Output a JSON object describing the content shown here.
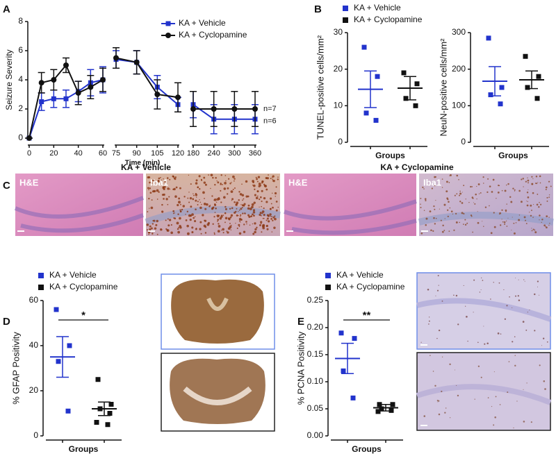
{
  "figure": {
    "panel_labels": [
      "A",
      "B",
      "C",
      "D",
      "E"
    ],
    "panel_c": {
      "headers": [
        "KA + Vehicle",
        "KA + Cyclopamine"
      ],
      "image_labels": [
        "H&E",
        "Iba1",
        "H&E",
        "Iba1"
      ]
    }
  },
  "chart_data": [
    {
      "type": "line",
      "xlabel": "Time (min)",
      "ylabel": "Seizure Severity",
      "x": [
        0,
        10,
        20,
        30,
        40,
        50,
        60,
        75,
        90,
        105,
        120,
        180,
        240,
        300,
        360
      ],
      "x_segments": [
        [
          0,
          60
        ],
        [
          75,
          120
        ],
        [
          180,
          360
        ]
      ],
      "xticks": [
        0,
        20,
        40,
        60,
        75,
        90,
        105,
        120,
        180,
        240,
        300,
        360
      ],
      "ylim": [
        0,
        8
      ],
      "yticks": [
        0,
        2,
        4,
        6,
        8
      ],
      "legend": "upper right",
      "series": [
        {
          "name": "KA + Vehicle",
          "color": "#2233cc",
          "marker": "square",
          "end_label": "n=6",
          "values": [
            0,
            2.5,
            2.7,
            2.7,
            3.2,
            3.8,
            4.0,
            5.4,
            5.2,
            3.5,
            2.3,
            2.3,
            1.3,
            1.3,
            1.3
          ],
          "errors": [
            0,
            0.6,
            0.6,
            0.6,
            0.7,
            0.9,
            0.9,
            0.6,
            0.8,
            0.8,
            0.5,
            0.9,
            1.0,
            1.0,
            1.0
          ]
        },
        {
          "name": "KA + Cyclopamine",
          "color": "#111111",
          "marker": "circle",
          "end_label": "n=7",
          "values": [
            0,
            3.8,
            4.0,
            5.0,
            3.1,
            3.5,
            4.0,
            5.5,
            5.2,
            3.0,
            2.8,
            2.0,
            2.0,
            2.0,
            2.0
          ],
          "errors": [
            0,
            0.7,
            0.7,
            0.5,
            0.8,
            0.8,
            0.8,
            0.7,
            0.8,
            1.0,
            1.0,
            1.2,
            1.2,
            1.2,
            1.2
          ]
        }
      ]
    },
    {
      "type": "dot",
      "xlabel": "Groups",
      "ylabel": "TUNEL-positive cells/mm²",
      "legend": "top",
      "ylim": [
        0,
        30
      ],
      "yticks": [
        0,
        10,
        20,
        30
      ],
      "series": [
        {
          "name": "KA + Vehicle",
          "color": "#2233cc",
          "values": [
            26,
            18,
            8,
            6
          ],
          "mean": 14.5,
          "sem": 5
        },
        {
          "name": "KA + Cyclopamine",
          "color": "#111111",
          "values": [
            19,
            16,
            12,
            10
          ],
          "mean": 14.8,
          "sem": 3.2
        }
      ]
    },
    {
      "type": "dot",
      "xlabel": "Groups",
      "ylabel": "NeuN-positive cells/mm²",
      "ylim": [
        0,
        300
      ],
      "yticks": [
        0,
        100,
        200,
        300
      ],
      "series": [
        {
          "color": "#2233cc",
          "values": [
            285,
            150,
            130,
            105
          ],
          "mean": 167,
          "sem": 40
        },
        {
          "color": "#111111",
          "values": [
            235,
            180,
            150,
            120
          ],
          "mean": 171,
          "sem": 24
        }
      ]
    },
    {
      "type": "dot",
      "xlabel": "Groups",
      "ylabel": "% GFAP Positivity",
      "legend": "top",
      "significance": "*",
      "ylim": [
        0,
        60
      ],
      "yticks": [
        0,
        20,
        40,
        60
      ],
      "series": [
        {
          "name": "KA + Vehicle",
          "color": "#2233cc",
          "values": [
            56,
            40,
            33,
            11
          ],
          "mean": 35,
          "sem": 9
        },
        {
          "name": "KA + Cyclopamine",
          "color": "#111111",
          "values": [
            25,
            14,
            12,
            10,
            6,
            5
          ],
          "mean": 12,
          "sem": 3
        }
      ]
    },
    {
      "type": "dot",
      "xlabel": "Groups",
      "ylabel": "% PCNA Positivity",
      "legend": "top",
      "significance": "**",
      "ylim": [
        0,
        0.25
      ],
      "yticks": [
        {
          "value": 0,
          "label": "0.00"
        },
        0.05,
        {
          "value": 0.1,
          "label": "0.10"
        },
        0.15,
        {
          "value": 0.2,
          "label": "0.20"
        },
        0.25
      ],
      "series": [
        {
          "name": "KA + Vehicle",
          "color": "#2233cc",
          "values": [
            0.19,
            0.18,
            0.12,
            0.07
          ],
          "mean": 0.143,
          "sem": 0.028
        },
        {
          "name": "KA + Cyclopamine",
          "color": "#111111",
          "values": [
            0.058,
            0.058,
            0.05,
            0.047,
            0.045
          ],
          "mean": 0.052,
          "sem": 0.006
        }
      ]
    }
  ]
}
